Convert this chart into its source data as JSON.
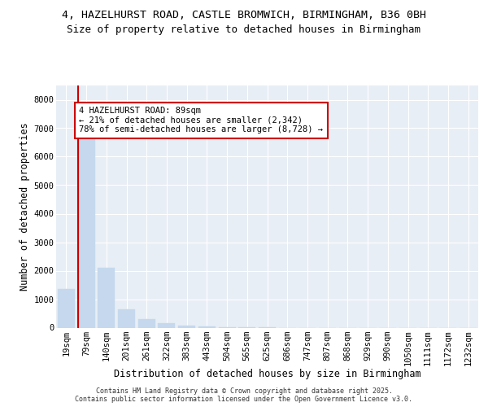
{
  "title1": "4, HAZELHURST ROAD, CASTLE BROMWICH, BIRMINGHAM, B36 0BH",
  "title2": "Size of property relative to detached houses in Birmingham",
  "xlabel": "Distribution of detached houses by size in Birmingham",
  "ylabel": "Number of detached properties",
  "categories": [
    "19sqm",
    "79sqm",
    "140sqm",
    "201sqm",
    "261sqm",
    "322sqm",
    "383sqm",
    "443sqm",
    "504sqm",
    "565sqm",
    "625sqm",
    "686sqm",
    "747sqm",
    "807sqm",
    "868sqm",
    "929sqm",
    "990sqm",
    "1050sqm",
    "1111sqm",
    "1172sqm",
    "1232sqm"
  ],
  "values": [
    1350,
    6700,
    2100,
    640,
    310,
    160,
    80,
    40,
    10,
    5,
    5,
    0,
    0,
    0,
    0,
    0,
    0,
    0,
    0,
    0,
    0
  ],
  "bar_color": "#c5d8ed",
  "bar_edge_color": "#c5d8ed",
  "marker_bar_index": 1,
  "marker_color": "#cc0000",
  "annotation_text": "4 HAZELHURST ROAD: 89sqm\n← 21% of detached houses are smaller (2,342)\n78% of semi-detached houses are larger (8,728) →",
  "annotation_box_color": "#cc0000",
  "ylim": [
    0,
    8500
  ],
  "yticks": [
    0,
    1000,
    2000,
    3000,
    4000,
    5000,
    6000,
    7000,
    8000
  ],
  "footer": "Contains HM Land Registry data © Crown copyright and database right 2025.\nContains public sector information licensed under the Open Government Licence v3.0.",
  "bg_color": "#ffffff",
  "plot_bg_color": "#e8eef5",
  "grid_color": "#ffffff",
  "title1_fontsize": 9.5,
  "title2_fontsize": 9,
  "axis_label_fontsize": 8.5,
  "tick_fontsize": 7.5,
  "annotation_fontsize": 7.5,
  "footer_fontsize": 6
}
